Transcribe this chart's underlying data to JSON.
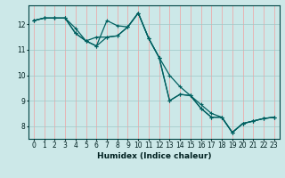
{
  "title": "",
  "xlabel": "Humidex (Indice chaleur)",
  "bg_color": "#cce8e8",
  "line_color": "#006060",
  "grid_v_color": "#f0a0a0",
  "grid_h_color": "#a0c8c8",
  "xlim": [
    -0.5,
    23.5
  ],
  "ylim": [
    7.5,
    12.75
  ],
  "yticks": [
    8,
    9,
    10,
    11,
    12
  ],
  "xticks": [
    0,
    1,
    2,
    3,
    4,
    5,
    6,
    7,
    8,
    9,
    10,
    11,
    12,
    13,
    14,
    15,
    16,
    17,
    18,
    19,
    20,
    21,
    22,
    23
  ],
  "line1_x": [
    0,
    1,
    2,
    3,
    4,
    5,
    6,
    7,
    8,
    9,
    10,
    11,
    12,
    13,
    14,
    15,
    16,
    17,
    18,
    19,
    20,
    21,
    22,
    23
  ],
  "line1_y": [
    12.15,
    12.25,
    12.25,
    12.25,
    11.85,
    11.35,
    11.15,
    12.15,
    11.95,
    11.9,
    12.45,
    11.45,
    10.7,
    10.0,
    9.55,
    9.2,
    8.85,
    8.5,
    8.35,
    7.75,
    8.1,
    8.2,
    8.3,
    8.35
  ],
  "line2_x": [
    0,
    1,
    2,
    3,
    4,
    5,
    6,
    7,
    8,
    9,
    10,
    11,
    12,
    13,
    14,
    15,
    16,
    17,
    18,
    19,
    20,
    21,
    22,
    23
  ],
  "line2_y": [
    12.15,
    12.25,
    12.25,
    12.25,
    11.65,
    11.35,
    11.5,
    11.5,
    11.55,
    11.9,
    12.45,
    11.45,
    10.7,
    9.0,
    9.25,
    9.2,
    8.7,
    8.35,
    8.35,
    7.75,
    8.1,
    8.2,
    8.3,
    8.35
  ],
  "line3_x": [
    0,
    1,
    2,
    3,
    4,
    5,
    6,
    7,
    8,
    9,
    10,
    11,
    12,
    13,
    14,
    15,
    16,
    17,
    18,
    19,
    20,
    21,
    22,
    23
  ],
  "line3_y": [
    12.15,
    12.25,
    12.25,
    12.25,
    11.65,
    11.35,
    11.15,
    11.5,
    11.55,
    11.9,
    12.45,
    11.45,
    10.7,
    9.0,
    9.25,
    9.2,
    8.7,
    8.35,
    8.35,
    7.75,
    8.1,
    8.2,
    8.3,
    8.35
  ]
}
